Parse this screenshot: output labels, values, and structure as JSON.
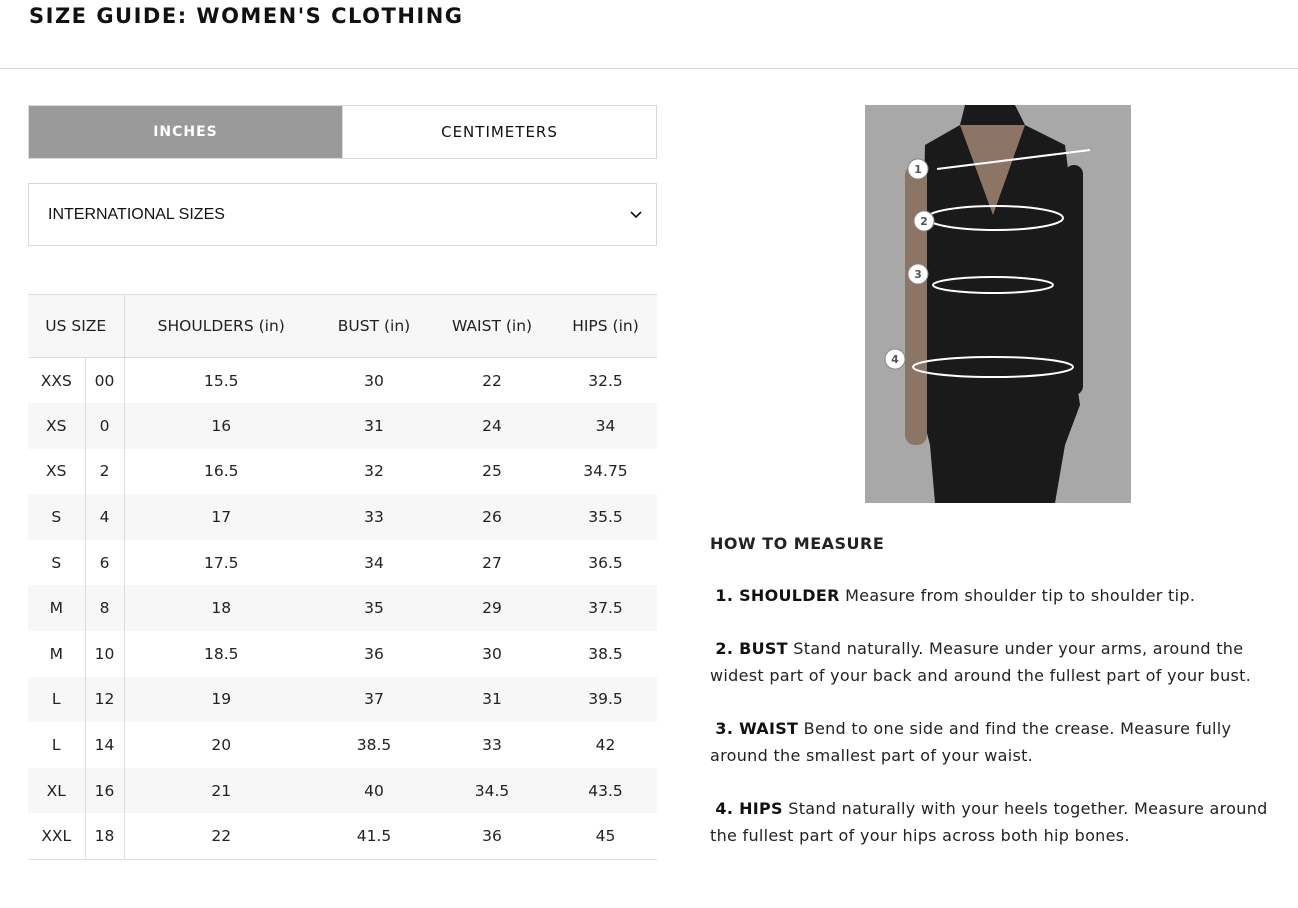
{
  "title": "SIZE GUIDE: WOMEN'S CLOTHING",
  "units": {
    "inches": "INCHES",
    "centimeters": "CENTIMETERS",
    "active": "inches"
  },
  "size_select": {
    "value": "INTERNATIONAL SIZES",
    "icon": "chevron-down-icon"
  },
  "table": {
    "headers": [
      "US SIZE",
      "SHOULDERS (in)",
      "BUST (in)",
      "WAIST (in)",
      "HIPS (in)"
    ],
    "rows": [
      [
        "XXS",
        "00",
        "15.5",
        "30",
        "22",
        "32.5"
      ],
      [
        "XS",
        "0",
        "16",
        "31",
        "24",
        "34"
      ],
      [
        "XS",
        "2",
        "16.5",
        "32",
        "25",
        "34.75"
      ],
      [
        "S",
        "4",
        "17",
        "33",
        "26",
        "35.5"
      ],
      [
        "S",
        "6",
        "17.5",
        "34",
        "27",
        "36.5"
      ],
      [
        "M",
        "8",
        "18",
        "35",
        "29",
        "37.5"
      ],
      [
        "M",
        "10",
        "18.5",
        "36",
        "30",
        "38.5"
      ],
      [
        "L",
        "12",
        "19",
        "37",
        "31",
        "39.5"
      ],
      [
        "L",
        "14",
        "20",
        "38.5",
        "33",
        "42"
      ],
      [
        "XL",
        "16",
        "21",
        "40",
        "34.5",
        "43.5"
      ],
      [
        "XXL",
        "18",
        "22",
        "41.5",
        "36",
        "45"
      ]
    ]
  },
  "diagram": {
    "markers": [
      "1",
      "2",
      "3",
      "4"
    ]
  },
  "how_to": {
    "heading": "HOW TO MEASURE",
    "items": [
      {
        "label": "1. SHOULDER",
        "text": " Measure from shoulder tip to shoulder tip."
      },
      {
        "label": "2. BUST",
        "text": "  Stand naturally. Measure under your arms, around the widest part of your back and around the fullest part of your bust."
      },
      {
        "label": "3. WAIST",
        "text": " Bend to one side and find the crease. Measure fully around the smallest part of your waist."
      },
      {
        "label": "4. HIPS",
        "text": " Stand naturally with your heels together. Measure around the fullest part of your hips across both hip bones."
      }
    ]
  }
}
